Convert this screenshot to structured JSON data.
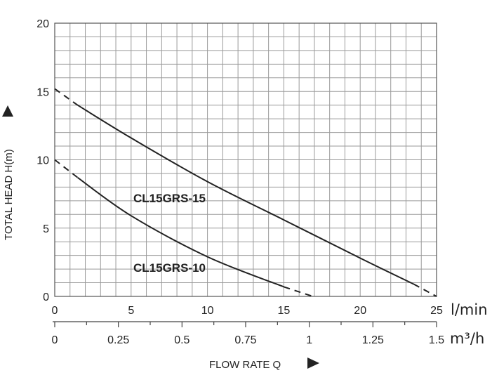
{
  "chart_data": {
    "type": "line",
    "xlabel": "FLOW RATE Q",
    "ylabel": "TOTAL HEAD H(m)",
    "x_unit": "l/min",
    "x2_unit": "m³/h",
    "xlim": [
      0,
      25
    ],
    "ylim": [
      0,
      20
    ],
    "x2lim": [
      0,
      1.5
    ],
    "x_ticks": [
      "0",
      "5",
      "10",
      "15",
      "20",
      "25"
    ],
    "x2_ticks": [
      "0",
      "0.25",
      "0.5",
      "0.75",
      "1",
      "1.25",
      "1.5"
    ],
    "y_ticks": [
      "0",
      "5",
      "10",
      "15",
      "20"
    ],
    "grid": true,
    "series": [
      {
        "name": "CL15GRS-15",
        "solid": [
          [
            1.5,
            14.0
          ],
          [
            5,
            11.6
          ],
          [
            10,
            8.4
          ],
          [
            15,
            5.6
          ],
          [
            20,
            2.8
          ],
          [
            23.5,
            0.9
          ]
        ],
        "dashed_start": [
          [
            0,
            15.2
          ],
          [
            1.5,
            14.0
          ]
        ],
        "dashed_end": [
          [
            23.5,
            0.9
          ],
          [
            25,
            0.0
          ]
        ]
      },
      {
        "name": "CL15GRS-10",
        "solid": [
          [
            1.5,
            8.7
          ],
          [
            5,
            5.9
          ],
          [
            10,
            2.9
          ],
          [
            15,
            0.7
          ]
        ],
        "dashed_start": [
          [
            0,
            10.0
          ],
          [
            1.5,
            8.7
          ]
        ],
        "dashed_end": [
          [
            15,
            0.7
          ],
          [
            16.9,
            0.0
          ]
        ]
      }
    ]
  }
}
